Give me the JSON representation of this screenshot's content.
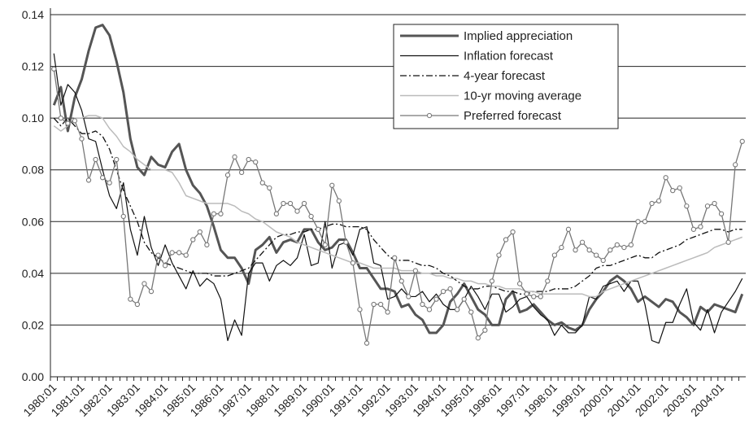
{
  "chart_data": {
    "type": "line",
    "categories": [
      "1980:01",
      null,
      null,
      null,
      "1981:01",
      null,
      null,
      null,
      "1982:01",
      null,
      null,
      null,
      "1983:01",
      null,
      null,
      null,
      "1984:01",
      null,
      null,
      null,
      "1985:01",
      null,
      null,
      null,
      "1986:01",
      null,
      null,
      null,
      "1987:01",
      null,
      null,
      null,
      "1988:01",
      null,
      null,
      null,
      "1989:01",
      null,
      null,
      null,
      "1990:01",
      null,
      null,
      null,
      "1991:01",
      null,
      null,
      null,
      "1992:01",
      null,
      null,
      null,
      "1993:01",
      null,
      null,
      null,
      "1994:01",
      null,
      null,
      null,
      "1995:01",
      null,
      null,
      null,
      "1996:01",
      null,
      null,
      null,
      "1997:01",
      null,
      null,
      null,
      "1998:01",
      null,
      null,
      null,
      "1999:01",
      null,
      null,
      null,
      "2000:01",
      null,
      null,
      null,
      "2001:01",
      null,
      null,
      null,
      "2002:01",
      null,
      null,
      null,
      "2003:01",
      null,
      null,
      null,
      "2004:01",
      null,
      null,
      null
    ],
    "series": [
      {
        "name": "Implied appreciation",
        "color": "#555555",
        "values": [
          0.105,
          0.112,
          0.095,
          0.108,
          0.115,
          0.126,
          0.135,
          0.136,
          0.132,
          0.122,
          0.11,
          0.092,
          0.081,
          0.078,
          0.085,
          0.082,
          0.081,
          0.087,
          0.09,
          0.08,
          0.074,
          0.071,
          0.066,
          0.058,
          0.049,
          0.046,
          0.046,
          0.042,
          0.036,
          0.049,
          0.051,
          0.054,
          0.048,
          0.052,
          0.053,
          0.052,
          0.057,
          0.057,
          0.052,
          0.049,
          0.05,
          0.053,
          0.053,
          0.048,
          0.042,
          0.042,
          0.038,
          0.034,
          0.034,
          0.033,
          0.027,
          0.028,
          0.024,
          0.022,
          0.017,
          0.017,
          0.02,
          0.029,
          0.032,
          0.036,
          0.031,
          0.026,
          0.024,
          0.02,
          0.02,
          0.03,
          0.033,
          0.025,
          0.026,
          0.028,
          0.025,
          0.022,
          0.02,
          0.021,
          0.019,
          0.018,
          0.02,
          0.026,
          0.03,
          0.033,
          0.037,
          0.039,
          0.037,
          0.034,
          0.029,
          0.031,
          0.029,
          0.027,
          0.03,
          0.029,
          0.025,
          0.023,
          0.02,
          0.027,
          0.025,
          0.028,
          0.027,
          0.026,
          0.025,
          0.032
        ]
      },
      {
        "name": "Inflation forecast",
        "color": "#111111",
        "values": [
          0.125,
          0.105,
          0.113,
          0.11,
          0.103,
          0.092,
          0.091,
          0.08,
          0.07,
          0.065,
          0.075,
          0.057,
          0.047,
          0.062,
          0.05,
          0.043,
          0.051,
          0.044,
          0.039,
          0.034,
          0.041,
          0.035,
          0.038,
          0.036,
          0.03,
          0.014,
          0.022,
          0.016,
          0.04,
          0.044,
          0.044,
          0.037,
          0.043,
          0.045,
          0.043,
          0.046,
          0.055,
          0.043,
          0.044,
          0.06,
          0.042,
          0.051,
          0.052,
          0.047,
          0.057,
          0.058,
          0.044,
          0.043,
          0.03,
          0.031,
          0.034,
          0.031,
          0.031,
          0.033,
          0.029,
          0.032,
          0.028,
          0.026,
          0.026,
          0.03,
          0.035,
          0.031,
          0.026,
          0.032,
          0.032,
          0.025,
          0.027,
          0.03,
          0.031,
          0.027,
          0.024,
          0.022,
          0.016,
          0.02,
          0.017,
          0.017,
          0.02,
          0.031,
          0.03,
          0.035,
          0.036,
          0.037,
          0.033,
          0.037,
          0.037,
          0.028,
          0.014,
          0.013,
          0.021,
          0.021,
          0.028,
          0.034,
          0.021,
          0.018,
          0.026,
          0.017,
          0.025,
          0.029,
          0.033,
          0.038
        ]
      },
      {
        "name": "4-year forecast",
        "color": "#111111",
        "dash": "8 3 2 3",
        "values": [
          0.1,
          0.097,
          0.1,
          0.097,
          0.094,
          0.094,
          0.095,
          0.093,
          0.088,
          0.08,
          0.072,
          0.066,
          0.06,
          0.052,
          0.048,
          0.046,
          0.044,
          0.043,
          0.042,
          0.041,
          0.04,
          0.04,
          0.04,
          0.039,
          0.039,
          0.039,
          0.04,
          0.041,
          0.042,
          0.045,
          0.048,
          0.051,
          0.054,
          0.055,
          0.055,
          0.056,
          0.056,
          0.057,
          0.057,
          0.058,
          0.059,
          0.059,
          0.058,
          0.058,
          0.058,
          0.057,
          0.053,
          0.05,
          0.047,
          0.045,
          0.045,
          0.045,
          0.044,
          0.043,
          0.043,
          0.042,
          0.04,
          0.039,
          0.037,
          0.035,
          0.034,
          0.034,
          0.035,
          0.035,
          0.034,
          0.033,
          0.033,
          0.032,
          0.032,
          0.033,
          0.033,
          0.033,
          0.034,
          0.034,
          0.034,
          0.035,
          0.037,
          0.039,
          0.042,
          0.043,
          0.043,
          0.044,
          0.045,
          0.046,
          0.047,
          0.046,
          0.046,
          0.048,
          0.049,
          0.05,
          0.051,
          0.053,
          0.054,
          0.055,
          0.056,
          0.057,
          0.057,
          0.056,
          0.057,
          0.057
        ]
      },
      {
        "name": "10-yr moving average",
        "color": "#bbbbbb",
        "values": [
          0.097,
          0.095,
          0.097,
          0.1,
          0.1,
          0.101,
          0.101,
          0.1,
          0.096,
          0.093,
          0.089,
          0.087,
          0.084,
          0.082,
          0.08,
          0.08,
          0.08,
          0.079,
          0.075,
          0.07,
          0.069,
          0.068,
          0.067,
          0.067,
          0.067,
          0.067,
          0.066,
          0.064,
          0.063,
          0.061,
          0.06,
          0.058,
          0.056,
          0.055,
          0.054,
          0.052,
          0.051,
          0.05,
          0.049,
          0.048,
          0.047,
          0.046,
          0.045,
          0.044,
          0.044,
          0.043,
          0.042,
          0.042,
          0.042,
          0.042,
          0.041,
          0.041,
          0.041,
          0.04,
          0.04,
          0.039,
          0.039,
          0.038,
          0.038,
          0.037,
          0.037,
          0.036,
          0.036,
          0.035,
          0.035,
          0.034,
          0.034,
          0.034,
          0.033,
          0.033,
          0.032,
          0.032,
          0.032,
          0.032,
          0.032,
          0.032,
          0.032,
          0.031,
          0.031,
          0.033,
          0.034,
          0.035,
          0.036,
          0.037,
          0.038,
          0.039,
          0.04,
          0.041,
          0.042,
          0.043,
          0.044,
          0.045,
          0.046,
          0.047,
          0.048,
          0.05,
          0.051,
          0.052,
          0.053,
          0.054
        ]
      },
      {
        "name": "Preferred forecast",
        "color": "#777777",
        "marker": "circle",
        "values": [
          0.119,
          0.1,
          0.098,
          0.099,
          0.092,
          0.076,
          0.084,
          0.077,
          0.075,
          0.084,
          0.062,
          0.03,
          0.028,
          0.036,
          0.033,
          0.047,
          0.043,
          0.048,
          0.048,
          0.047,
          0.053,
          0.056,
          0.051,
          0.063,
          0.063,
          0.078,
          0.085,
          0.079,
          0.084,
          0.083,
          0.075,
          0.073,
          0.063,
          0.067,
          0.067,
          0.064,
          0.067,
          0.062,
          0.057,
          0.051,
          0.074,
          0.068,
          0.052,
          0.044,
          0.026,
          0.013,
          0.028,
          0.028,
          0.025,
          0.046,
          0.037,
          0.031,
          0.041,
          0.028,
          0.026,
          0.03,
          0.033,
          0.034,
          0.026,
          0.03,
          0.025,
          0.015,
          0.018,
          0.037,
          0.047,
          0.053,
          0.056,
          0.036,
          0.032,
          0.031,
          0.031,
          0.037,
          0.047,
          0.05,
          0.057,
          0.049,
          0.052,
          0.049,
          0.047,
          0.045,
          0.049,
          0.051,
          0.05,
          0.051,
          0.06,
          0.06,
          0.067,
          0.068,
          0.077,
          0.072,
          0.073,
          0.066,
          0.057,
          0.058,
          0.066,
          0.067,
          0.063,
          0.052,
          0.082,
          0.091
        ]
      }
    ],
    "ylim": [
      0,
      0.14
    ],
    "yticks": [
      {
        "value": 0,
        "label": "0.00"
      },
      0.02,
      0.04,
      0.06,
      0.08,
      {
        "value": 0.1,
        "label": "0.10"
      },
      0.12,
      0.14
    ],
    "grid": true,
    "legend": "upper right"
  }
}
